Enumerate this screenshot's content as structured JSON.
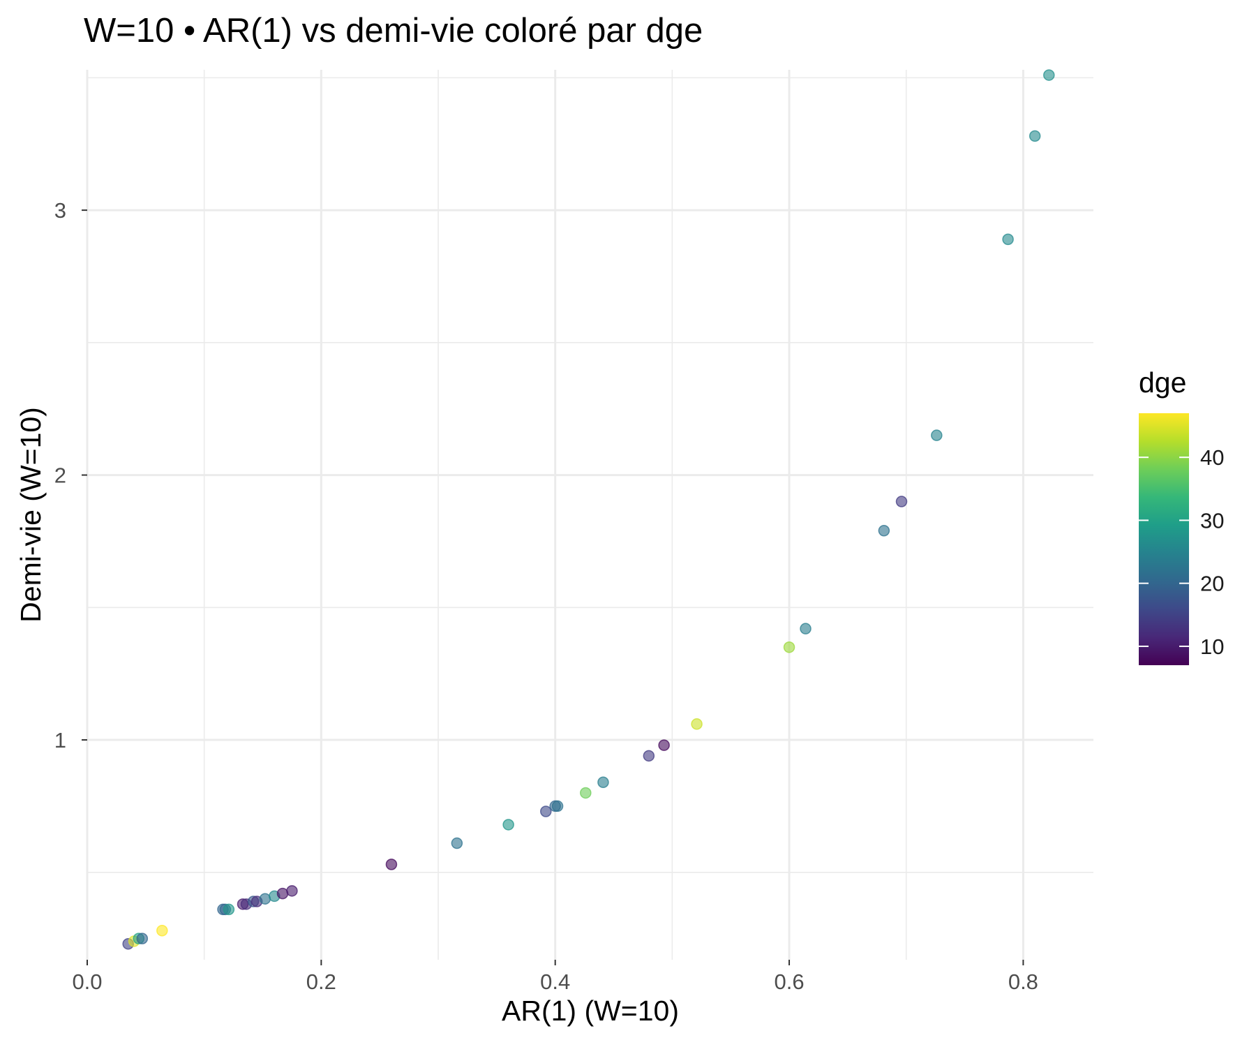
{
  "chart_data": {
    "type": "scatter",
    "title": "W=10 • AR(1) vs demi-vie coloré par dge",
    "xlabel": "AR(1) (W=10)",
    "ylabel": "Demi-vie (W=10)",
    "xlim": [
      0.0,
      0.86
    ],
    "ylim": [
      0.17,
      3.53
    ],
    "x_ticks": [
      0.0,
      0.2,
      0.4,
      0.6,
      0.8
    ],
    "x_tick_labels": [
      "0.0",
      "0.2",
      "0.4",
      "0.6",
      "0.8"
    ],
    "y_ticks": [
      1,
      2,
      3
    ],
    "y_tick_labels": [
      "1",
      "2",
      "3"
    ],
    "grid": true,
    "colorbar": {
      "title": "dge",
      "min": 7,
      "max": 47,
      "ticks": [
        10,
        20,
        30,
        40
      ],
      "tick_labels": [
        "10",
        "20",
        "30",
        "40"
      ],
      "palette": [
        "#440154",
        "#482878",
        "#3e4989",
        "#31688e",
        "#26828e",
        "#1f9e89",
        "#35b779",
        "#6ece58",
        "#b5de2b",
        "#fde725"
      ],
      "placement": "right"
    },
    "points": [
      {
        "x": 0.035,
        "y": 0.23,
        "dge": 15
      },
      {
        "x": 0.04,
        "y": 0.24,
        "dge": 45
      },
      {
        "x": 0.044,
        "y": 0.25,
        "dge": 30
      },
      {
        "x": 0.047,
        "y": 0.25,
        "dge": 20
      },
      {
        "x": 0.064,
        "y": 0.28,
        "dge": 47
      },
      {
        "x": 0.116,
        "y": 0.36,
        "dge": 20
      },
      {
        "x": 0.118,
        "y": 0.36,
        "dge": 20
      },
      {
        "x": 0.121,
        "y": 0.36,
        "dge": 28
      },
      {
        "x": 0.133,
        "y": 0.38,
        "dge": 10
      },
      {
        "x": 0.136,
        "y": 0.38,
        "dge": 12
      },
      {
        "x": 0.142,
        "y": 0.39,
        "dge": 18
      },
      {
        "x": 0.145,
        "y": 0.39,
        "dge": 12
      },
      {
        "x": 0.152,
        "y": 0.4,
        "dge": 22
      },
      {
        "x": 0.16,
        "y": 0.41,
        "dge": 26
      },
      {
        "x": 0.167,
        "y": 0.42,
        "dge": 9
      },
      {
        "x": 0.175,
        "y": 0.43,
        "dge": 10
      },
      {
        "x": 0.26,
        "y": 0.53,
        "dge": 8
      },
      {
        "x": 0.316,
        "y": 0.61,
        "dge": 22
      },
      {
        "x": 0.36,
        "y": 0.68,
        "dge": 28
      },
      {
        "x": 0.392,
        "y": 0.73,
        "dge": 16
      },
      {
        "x": 0.4,
        "y": 0.75,
        "dge": 20
      },
      {
        "x": 0.402,
        "y": 0.75,
        "dge": 22
      },
      {
        "x": 0.426,
        "y": 0.8,
        "dge": 38
      },
      {
        "x": 0.441,
        "y": 0.84,
        "dge": 24
      },
      {
        "x": 0.48,
        "y": 0.94,
        "dge": 14
      },
      {
        "x": 0.493,
        "y": 0.98,
        "dge": 8
      },
      {
        "x": 0.521,
        "y": 1.06,
        "dge": 44
      },
      {
        "x": 0.6,
        "y": 1.35,
        "dge": 41
      },
      {
        "x": 0.614,
        "y": 1.42,
        "dge": 24
      },
      {
        "x": 0.681,
        "y": 1.79,
        "dge": 22
      },
      {
        "x": 0.696,
        "y": 1.9,
        "dge": 14
      },
      {
        "x": 0.726,
        "y": 2.15,
        "dge": 25
      },
      {
        "x": 0.787,
        "y": 2.89,
        "dge": 26
      },
      {
        "x": 0.81,
        "y": 3.28,
        "dge": 26
      },
      {
        "x": 0.822,
        "y": 3.51,
        "dge": 27
      }
    ]
  }
}
